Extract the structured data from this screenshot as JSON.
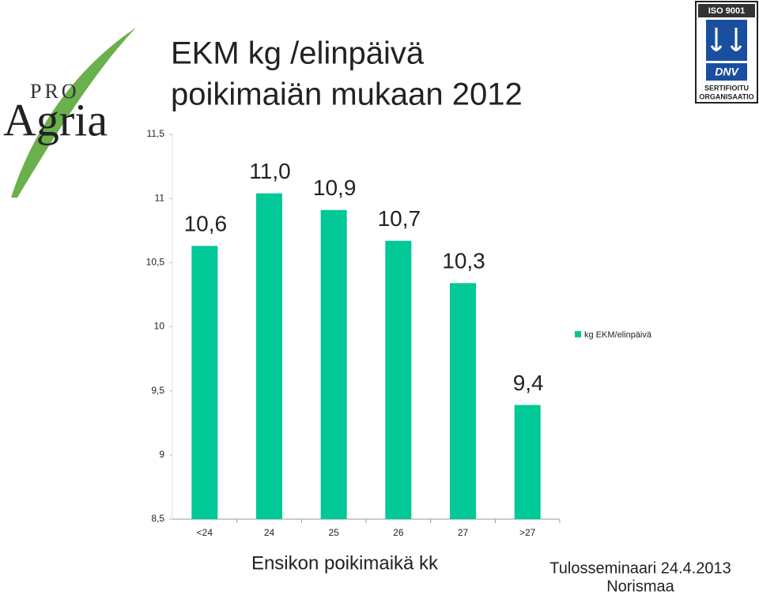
{
  "chart_data": {
    "type": "bar",
    "title": [
      "EKM kg /elinpäivä",
      "poikimaiän mukaan 2012"
    ],
    "x_label": "Ensikon poikimaikä kk",
    "categories": [
      "<24",
      "24",
      "25",
      "26",
      "27",
      ">27"
    ],
    "series": [
      {
        "name": "kg EKM/elinpäivä",
        "color": "#00c896",
        "values": [
          10.63,
          11.04,
          10.91,
          10.67,
          10.34,
          9.39
        ],
        "value_labels": [
          "10,6",
          "11,0",
          "10,9",
          "10,7",
          "10,3",
          "9,4"
        ]
      }
    ],
    "ylim": [
      8.5,
      11.5
    ],
    "yticks": [
      {
        "value": 8.5,
        "label": "8,5"
      },
      9,
      {
        "value": 9.5,
        "label": "9,5"
      },
      10,
      {
        "value": 10.5,
        "label": "10,5"
      },
      11,
      {
        "value": 11.5,
        "label": "11,5"
      }
    ],
    "grid": false,
    "legend": "right"
  },
  "logo": {
    "pro": "PRO",
    "agria": "Agria"
  },
  "badge": {
    "iso": "ISO 9001",
    "dnv": "DNV",
    "line1": "SERTIFIOITU",
    "line2": "ORGANISAATIO"
  },
  "footer": {
    "event": "Tulosseminaari 24.4.2013",
    "author": "Norismaa"
  }
}
